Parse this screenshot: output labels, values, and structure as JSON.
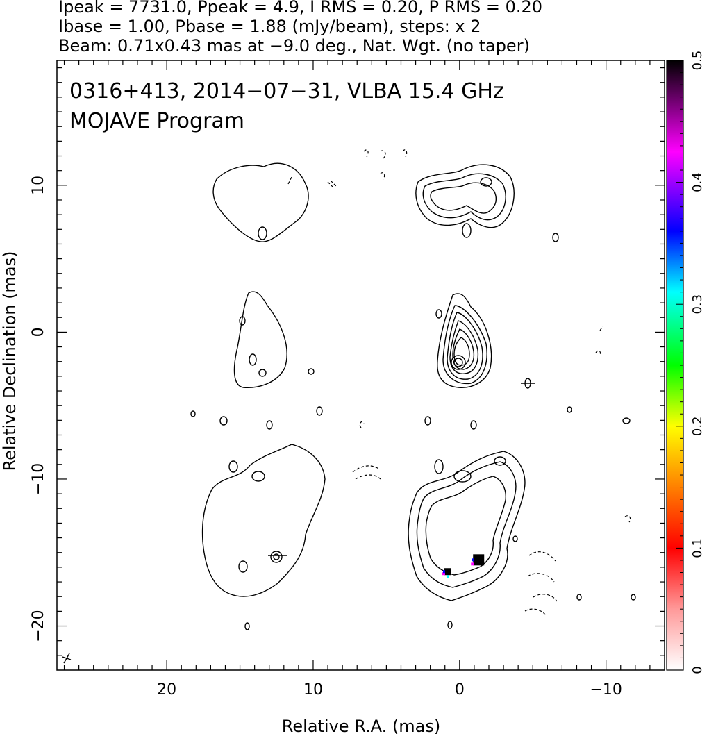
{
  "header": {
    "line1": "Ipeak = 7731.0, Ppeak = 4.9, I RMS = 0.20, P RMS = 0.20",
    "line2": "Ibase = 1.00, Pbase = 1.88 (mJy/beam), steps: x 2",
    "line3": "Beam: 0.71x0.43 mas at −9.0 deg., Nat. Wgt. (no taper)"
  },
  "chart_data": {
    "type": "heatmap",
    "title": "0316+413, 2014−07−31, VLBA 15.4 GHz",
    "subtitle": "MOJAVE Program",
    "xlabel": "Relative R.A. (mas)",
    "ylabel": "Relative Declination (mas)",
    "xlim": [
      27.5,
      -14
    ],
    "ylim": [
      -23,
      18.5
    ],
    "x_ticks": [
      20,
      10,
      0,
      -10
    ],
    "x_tick_labels": [
      "20",
      "10",
      "0",
      "−10"
    ],
    "y_ticks": [
      10,
      0,
      -10,
      -20
    ],
    "y_tick_labels": [
      "10",
      "0",
      "−10",
      "−20"
    ],
    "colorbar": {
      "min": 0,
      "max": 0.5,
      "ticks": [
        0,
        0.1,
        0.2,
        0.3,
        0.4,
        0.5
      ],
      "tick_labels": [
        "0",
        "0.1",
        "0.2",
        "0.3",
        "0.4",
        "0.5"
      ],
      "colors": [
        "#ffffff",
        "#ff9999",
        "#ff0000",
        "#ff8000",
        "#ffff00",
        "#00ff00",
        "#00ffff",
        "#0000ff",
        "#ff00ff",
        "#000000"
      ]
    },
    "sources": [
      {
        "x": 0.5,
        "y": -1.5,
        "peak": true
      },
      {
        "x": -1.3,
        "y": -15.5
      },
      {
        "x": 0.8,
        "y": -16.3
      }
    ]
  }
}
